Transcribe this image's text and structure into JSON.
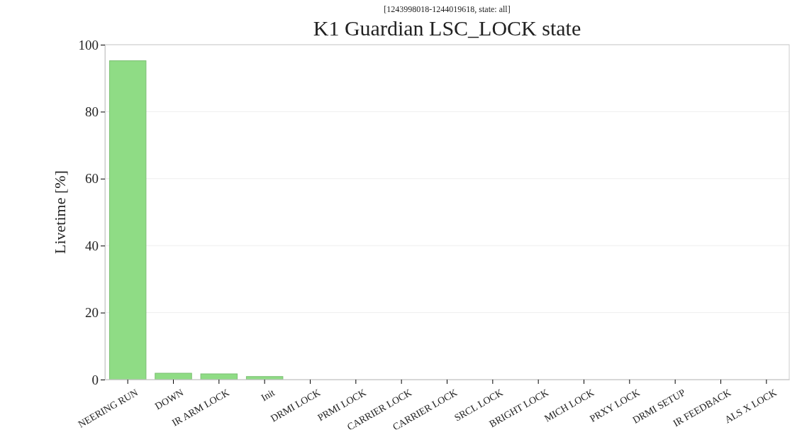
{
  "chart_data": {
    "type": "bar",
    "title": "K1 Guardian LSC_LOCK state",
    "subtitle": "[1243998018-1244019618, state: all]",
    "ylabel": "Livetime [%]",
    "categories": [
      "NEERING RUN",
      "DOWN",
      "IR ARM LOCK",
      "Init",
      "DRMI LOCK",
      "PRMI LOCK",
      "CARRIER LOCK",
      "CARRIER LOCK",
      "SRCL LOCK",
      "BRIGHT LOCK",
      "MICH LOCK",
      "PRXY LOCK",
      "DRMI SETUP",
      "IR FEEDBACK",
      "ALS X LOCK"
    ],
    "values": [
      95.2,
      1.9,
      1.7,
      0.9,
      0,
      0,
      0,
      0,
      0,
      0,
      0,
      0,
      0,
      0,
      0
    ],
    "color": "#8fdc85",
    "ylim": [
      0,
      100
    ],
    "yticks": [
      0,
      20,
      40,
      60,
      80,
      100
    ],
    "grid": "y"
  }
}
